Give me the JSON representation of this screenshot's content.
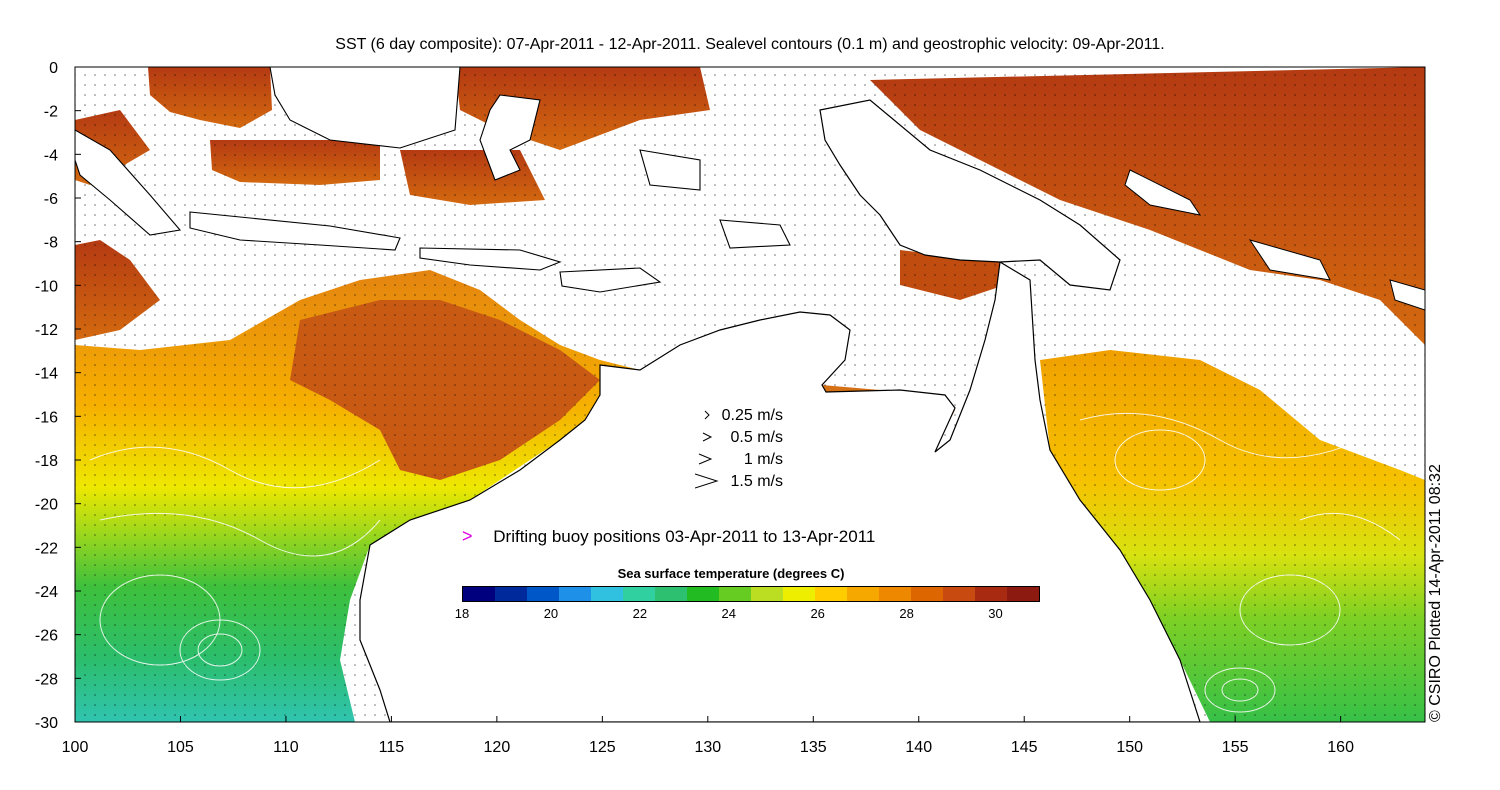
{
  "title": "SST (6 day composite): 07-Apr-2011 - 12-Apr-2011. Sealevel contours (0.1 m) and geostrophic velocity: 09-Apr-2011.",
  "credit": "© CSIRO Plotted 14-Apr-2011 08:32",
  "axes": {
    "lon_ticks": [
      "100",
      "105",
      "110",
      "115",
      "120",
      "125",
      "130",
      "135",
      "140",
      "145",
      "150",
      "155",
      "160"
    ],
    "lat_ticks": [
      "0",
      "-2",
      "-4",
      "-6",
      "-8",
      "-10",
      "-12",
      "-14",
      "-16",
      "-18",
      "-20",
      "-22",
      "-24",
      "-26",
      "-28",
      "-30"
    ],
    "lon_range": [
      100,
      164
    ],
    "lat_range": [
      -30,
      0
    ]
  },
  "velocity_legend": [
    {
      "label": "0.25 m/s",
      "speed": 0.25
    },
    {
      "label": "0.5 m/s",
      "speed": 0.5
    },
    {
      "label": "1 m/s",
      "speed": 1
    },
    {
      "label": "1.5 m/s",
      "speed": 1.5
    }
  ],
  "buoy_legend": {
    "symbol": ">",
    "label": "Drifting buoy positions 03-Apr-2011 to 13-Apr-2011",
    "color": "#e000e0"
  },
  "colorbar": {
    "title": "Sea surface temperature (degrees C)",
    "ticks": [
      "18",
      "20",
      "22",
      "24",
      "26",
      "28",
      "30"
    ],
    "range": [
      18,
      31
    ],
    "colors": [
      "#00007f",
      "#002a9c",
      "#0058c8",
      "#1e90e8",
      "#30c0e0",
      "#30d0a0",
      "#2cc070",
      "#22bb22",
      "#66cc22",
      "#bbdd22",
      "#eeee00",
      "#ffcc00",
      "#f6a800",
      "#ee8800",
      "#dd6600",
      "#c84a10",
      "#a82a10",
      "#8c1a10"
    ]
  },
  "colors": {
    "land": "#ffffff",
    "coastline": "#000000",
    "sealevel_contour": "#ffffff",
    "vector": "#000000"
  }
}
